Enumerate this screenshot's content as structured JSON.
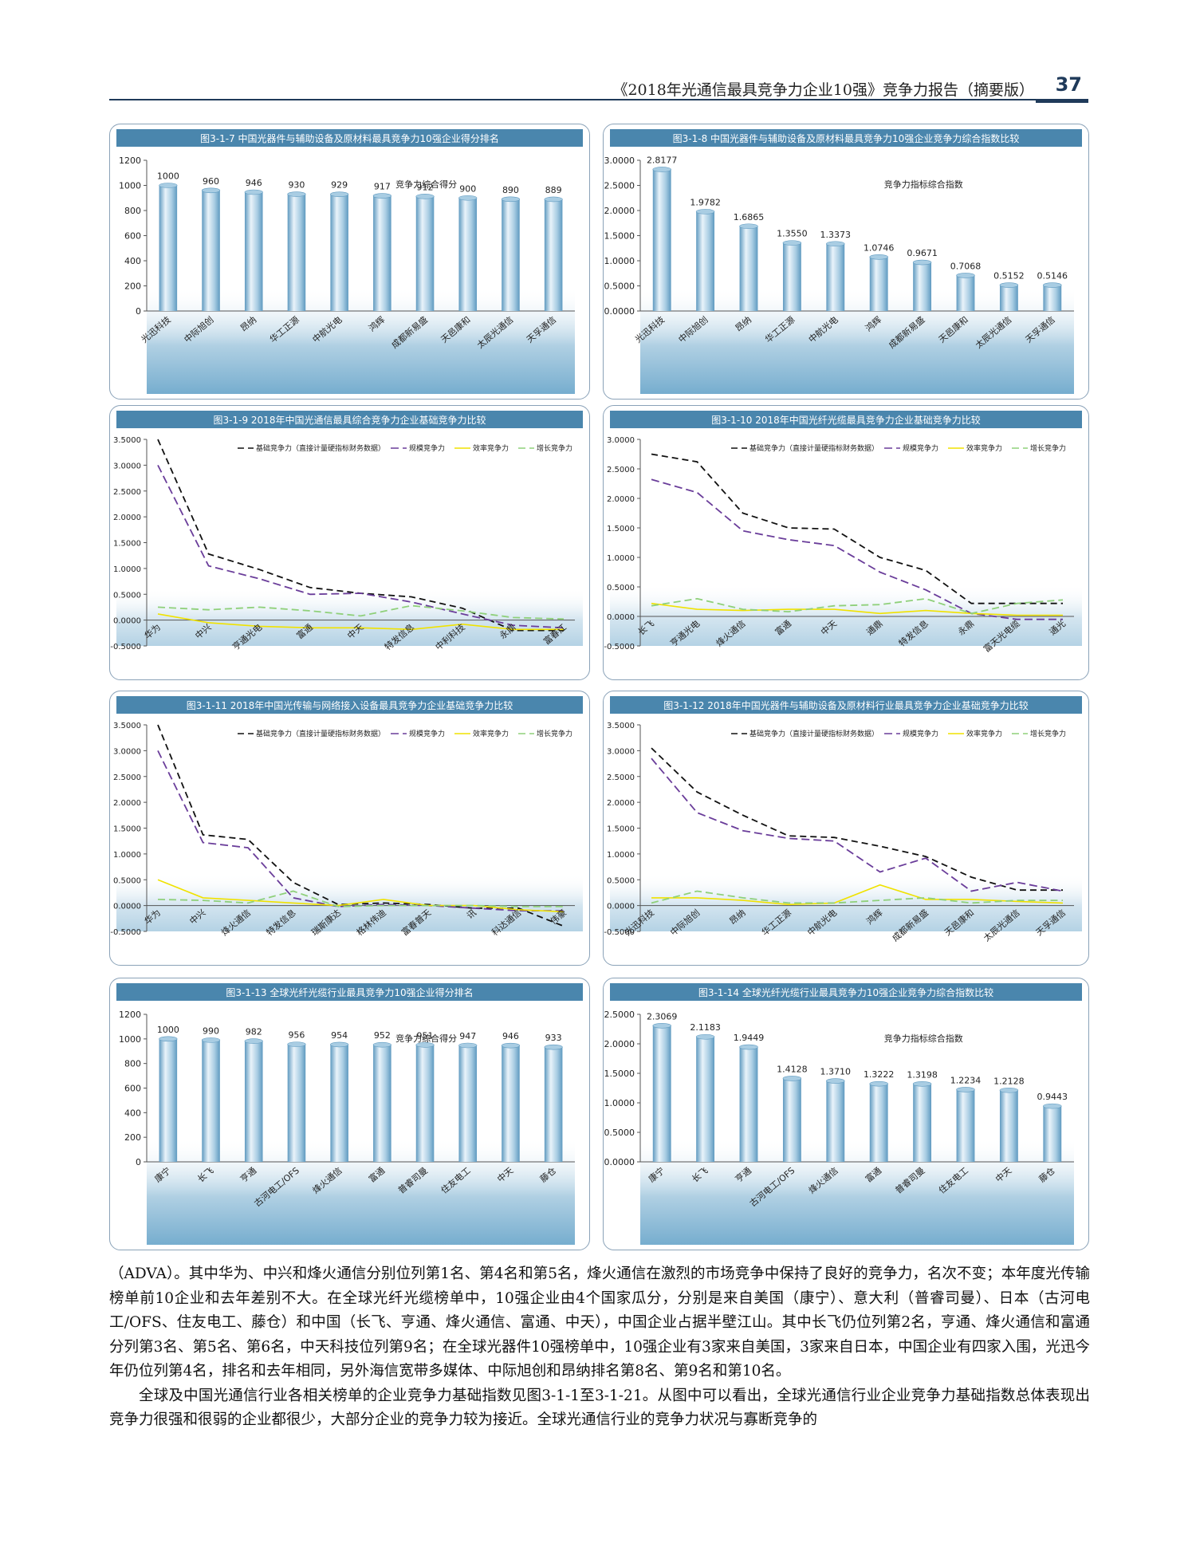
{
  "header": {
    "title": "《2018年光通信最具竞争力企业10强》竞争力报告（摘要版）",
    "page_number": "37"
  },
  "colors": {
    "panel_title_bg": "#4a86ad",
    "panel_title_text": "#ffffff",
    "bar_light": "#e9f3fa",
    "bar_mid": "#a9cde3",
    "bar_dark": "#5f9ac0",
    "base_band": "#6fa9cc",
    "line_basic": "#111111",
    "line_scale": "#6a3d9a",
    "line_efficiency": "#f0e200",
    "line_growth": "#8fd07a"
  },
  "chart_data": [
    {
      "id": "fig317",
      "type": "bar",
      "title": "图3-1-7 中国光器件与辅助设备及原材料最具竞争力10强企业得分排名",
      "legend": "竞争力综合得分",
      "categories": [
        "光迅科技",
        "中际旭创",
        "昂纳",
        "华工正源",
        "中航光电",
        "鸿辉",
        "成都新易盛",
        "天邑康和",
        "太辰光通信",
        "天孚通信"
      ],
      "values": [
        1000,
        960,
        946,
        930,
        929,
        917,
        912,
        900,
        890,
        889
      ],
      "value_labels": [
        "1000",
        "960",
        "946",
        "930",
        "929",
        "917",
        "912",
        "900",
        "890",
        "889"
      ],
      "ylim": [
        0,
        1200
      ],
      "yticks": [
        "0",
        "200",
        "400",
        "600",
        "800",
        "1000",
        "1200"
      ]
    },
    {
      "id": "fig318",
      "type": "bar",
      "title": "图3-1-8 中国光器件与辅助设备及原材料最具竞争力10强企业竞争力综合指数比较",
      "legend": "竞争力指标综合指数",
      "categories": [
        "光迅科技",
        "中际旭创",
        "昂纳",
        "华工正源",
        "中航光电",
        "鸿辉",
        "成都新易盛",
        "天邑康和",
        "太辰光通信",
        "天孚通信"
      ],
      "values": [
        2.8177,
        1.9782,
        1.6865,
        1.355,
        1.3373,
        1.0746,
        0.9671,
        0.7068,
        0.5152,
        0.5146
      ],
      "value_labels": [
        "2.8177",
        "1.9782",
        "1.6865",
        "1.3550",
        "1.3373",
        "1.0746",
        "0.9671",
        "0.7068",
        "0.5152",
        "0.5146"
      ],
      "ylim": [
        0,
        3
      ],
      "yticks": [
        "0.0000",
        "0.5000",
        "1.0000",
        "1.5000",
        "2.0000",
        "2.5000",
        "3.0000"
      ]
    },
    {
      "id": "fig319",
      "type": "line",
      "title": "图3-1-9 2018年中国光通信最具综合竞争力企业基础竞争力比较",
      "categories": [
        "华为",
        "中兴",
        "亨通光电",
        "富通",
        "中天",
        "特发信息",
        "中利科技",
        "永鼎",
        "富春江"
      ],
      "ylim": [
        -0.5,
        3.5
      ],
      "yticks": [
        "-0.5000",
        "0.0000",
        "0.5000",
        "1.0000",
        "1.5000",
        "2.0000",
        "2.5000",
        "3.0000",
        "3.5000"
      ],
      "series": [
        {
          "name": "基础竞争力（直接计量硬指标财务数据）",
          "values": [
            3.5,
            1.28,
            0.98,
            0.63,
            0.52,
            0.45,
            0.23,
            -0.2,
            -0.2
          ]
        },
        {
          "name": "规模竞争力",
          "values": [
            3.0,
            1.05,
            0.8,
            0.5,
            0.52,
            0.35,
            0.12,
            -0.1,
            -0.15
          ]
        },
        {
          "name": "效率竞争力",
          "values": [
            0.12,
            -0.05,
            -0.12,
            -0.15,
            -0.15,
            -0.18,
            -0.08,
            -0.18,
            -0.18
          ]
        },
        {
          "name": "增长竞争力",
          "values": [
            0.25,
            0.2,
            0.25,
            0.18,
            0.08,
            0.28,
            0.18,
            0.05,
            0.02
          ]
        }
      ]
    },
    {
      "id": "fig3110",
      "type": "line",
      "title": "图3-1-10 2018年中国光纤光缆最具竞争力企业基础竞争力比较",
      "categories": [
        "长飞",
        "亨通光电",
        "烽火通信",
        "富通",
        "中天",
        "通鼎",
        "特发信息",
        "永鼎",
        "富天光电缆",
        "通光"
      ],
      "ylim": [
        -0.5,
        3.0
      ],
      "yticks": [
        "-0.5000",
        "0.0000",
        "0.5000",
        "1.0000",
        "1.5000",
        "2.0000",
        "2.5000",
        "3.0000"
      ],
      "series": [
        {
          "name": "基础竞争力（直接计量硬指标财务数据）",
          "values": [
            2.75,
            2.62,
            1.75,
            1.5,
            1.48,
            1.0,
            0.78,
            0.22,
            0.22,
            0.22
          ]
        },
        {
          "name": "规模竞争力",
          "values": [
            2.32,
            2.1,
            1.45,
            1.3,
            1.2,
            0.75,
            0.45,
            0.05,
            -0.05,
            -0.05
          ]
        },
        {
          "name": "效率竞争力",
          "values": [
            0.22,
            0.12,
            0.1,
            0.12,
            0.12,
            0.05,
            0.1,
            0.05,
            0.02,
            0.02
          ]
        },
        {
          "name": "增长竞争力",
          "values": [
            0.18,
            0.3,
            0.12,
            0.08,
            0.18,
            0.2,
            0.3,
            0.05,
            0.22,
            0.28
          ]
        }
      ]
    },
    {
      "id": "fig3111",
      "type": "line",
      "title": "图3-1-11 2018年中国光传输与网络接入设备最具竞争力企业基础竞争力比较",
      "categories": [
        "华为",
        "中兴",
        "烽火通信",
        "特发信息",
        "瑞斯康达",
        "格林伟迪",
        "富春普天",
        "讯",
        "科达通信",
        "伟豪"
      ],
      "ylim": [
        -0.5,
        3.5
      ],
      "yticks": [
        "-0.5000",
        "0.0000",
        "0.5000",
        "1.0000",
        "1.5000",
        "2.0000",
        "2.5000",
        "3.0000",
        "3.5000"
      ],
      "series": [
        {
          "name": "基础竞争力（直接计量硬指标财务数据）",
          "values": [
            3.5,
            1.37,
            1.28,
            0.45,
            0.02,
            0.05,
            0.02,
            -0.05,
            -0.05,
            -0.4
          ]
        },
        {
          "name": "规模竞争力",
          "values": [
            3.0,
            1.22,
            1.12,
            0.15,
            -0.02,
            0.02,
            0.0,
            -0.05,
            -0.1,
            -0.1
          ]
        },
        {
          "name": "效率竞争力",
          "values": [
            0.5,
            0.15,
            0.1,
            0.05,
            0.0,
            0.12,
            0.0,
            0.0,
            -0.08,
            -0.12
          ]
        },
        {
          "name": "增长竞争力",
          "values": [
            0.12,
            0.1,
            0.05,
            0.28,
            -0.02,
            0.0,
            0.0,
            0.0,
            -0.02,
            -0.02
          ]
        }
      ]
    },
    {
      "id": "fig3112",
      "type": "line",
      "title": "图3-1-12 2018年中国光器件与辅助设备及原材料行业最具竞争力企业基础竞争力比较",
      "categories": [
        "光迅科技",
        "中际旭创",
        "昂纳",
        "华工正源",
        "中航光电",
        "鸿辉",
        "成都新易盛",
        "天邑康和",
        "太辰光通信",
        "天孚通信"
      ],
      "ylim": [
        -0.5,
        3.5
      ],
      "yticks": [
        "-0.5000",
        "0.0000",
        "0.5000",
        "1.0000",
        "1.5000",
        "2.0000",
        "2.5000",
        "3.0000",
        "3.5000"
      ],
      "series": [
        {
          "name": "基础竞争力（直接计量硬指标财务数据）",
          "values": [
            3.05,
            2.2,
            1.75,
            1.35,
            1.32,
            1.15,
            0.95,
            0.55,
            0.3,
            0.3
          ]
        },
        {
          "name": "规模竞争力",
          "values": [
            2.85,
            1.8,
            1.45,
            1.3,
            1.25,
            0.65,
            0.92,
            0.28,
            0.45,
            0.28
          ]
        },
        {
          "name": "效率竞争力",
          "values": [
            0.15,
            0.15,
            0.1,
            0.02,
            0.05,
            0.4,
            0.12,
            0.12,
            0.08,
            0.05
          ]
        },
        {
          "name": "增长竞争力",
          "values": [
            0.05,
            0.28,
            0.15,
            0.05,
            0.05,
            0.1,
            0.15,
            0.05,
            0.1,
            0.1
          ]
        }
      ]
    },
    {
      "id": "fig3113",
      "type": "bar",
      "title": "图3-1-13 全球光纤光缆行业最具竞争力10强企业得分排名",
      "legend": "竞争力综合得分",
      "categories": [
        "康宁",
        "长飞",
        "亨通",
        "古河电工/OFS",
        "烽火通信",
        "富通",
        "普睿司曼",
        "住友电工",
        "中天",
        "藤仓"
      ],
      "values": [
        1000,
        990,
        982,
        956,
        954,
        952,
        951,
        947,
        946,
        933
      ],
      "value_labels": [
        "1000",
        "990",
        "982",
        "956",
        "954",
        "952",
        "951",
        "947",
        "946",
        "933"
      ],
      "ylim": [
        0,
        1200
      ],
      "yticks": [
        "0",
        "200",
        "400",
        "600",
        "800",
        "1000",
        "1200"
      ]
    },
    {
      "id": "fig3114",
      "type": "bar",
      "title": "图3-1-14 全球光纤光缆行业最具竞争力10强企业竞争力综合指数比较",
      "legend": "竞争力指标综合指数",
      "categories": [
        "康宁",
        "长飞",
        "亨通",
        "古河电工/OFS",
        "烽火通信",
        "富通",
        "普睿司曼",
        "住友电工",
        "中天",
        "藤仓"
      ],
      "values": [
        2.3069,
        2.1183,
        1.9449,
        1.4128,
        1.371,
        1.3222,
        1.3198,
        1.2234,
        1.2128,
        0.9443
      ],
      "value_labels": [
        "2.3069",
        "2.1183",
        "1.9449",
        "1.4128",
        "1.3710",
        "1.3222",
        "1.3198",
        "1.2234",
        "1.2128",
        "0.9443"
      ],
      "ylim": [
        0,
        2.5
      ],
      "yticks": [
        "0.0000",
        "0.5000",
        "1.0000",
        "1.5000",
        "2.0000",
        "2.5000"
      ]
    }
  ],
  "body": {
    "paragraph1": "（ADVA）。其中华为、中兴和烽火通信分别位列第1名、第4名和第5名，烽火通信在激烈的市场竞争中保持了良好的竞争力，名次不变；本年度光传输榜单前10企业和去年差别不大。在全球光纤光缆榜单中，10强企业由4个国家瓜分，分别是来自美国（康宁）、意大利（普睿司曼）、日本（古河电工/OFS、住友电工、藤仓）和中国（长飞、亨通、烽火通信、富通、中天），中国企业占据半壁江山。其中长飞仍位列第2名，亨通、烽火通信和富通分列第3名、第5名、第6名，中天科技位列第9名；在全球光器件10强榜单中，10强企业有3家来自美国，3家来自日本，中国企业有四家入围，光迅今年仍位列第4名，排名和去年相同，另外海信宽带多媒体、中际旭创和昂纳排名第8名、第9名和第10名。",
    "paragraph2": "全球及中国光通信行业各相关榜单的企业竞争力基础指数见图3-1-1至3-1-21。从图中可以看出，全球光通信行业企业竞争力基础指数总体表现出竞争力很强和很弱的企业都很少，大部分企业的竞争力较为接近。全球光通信行业的竞争力状况与寡断竞争的"
  }
}
